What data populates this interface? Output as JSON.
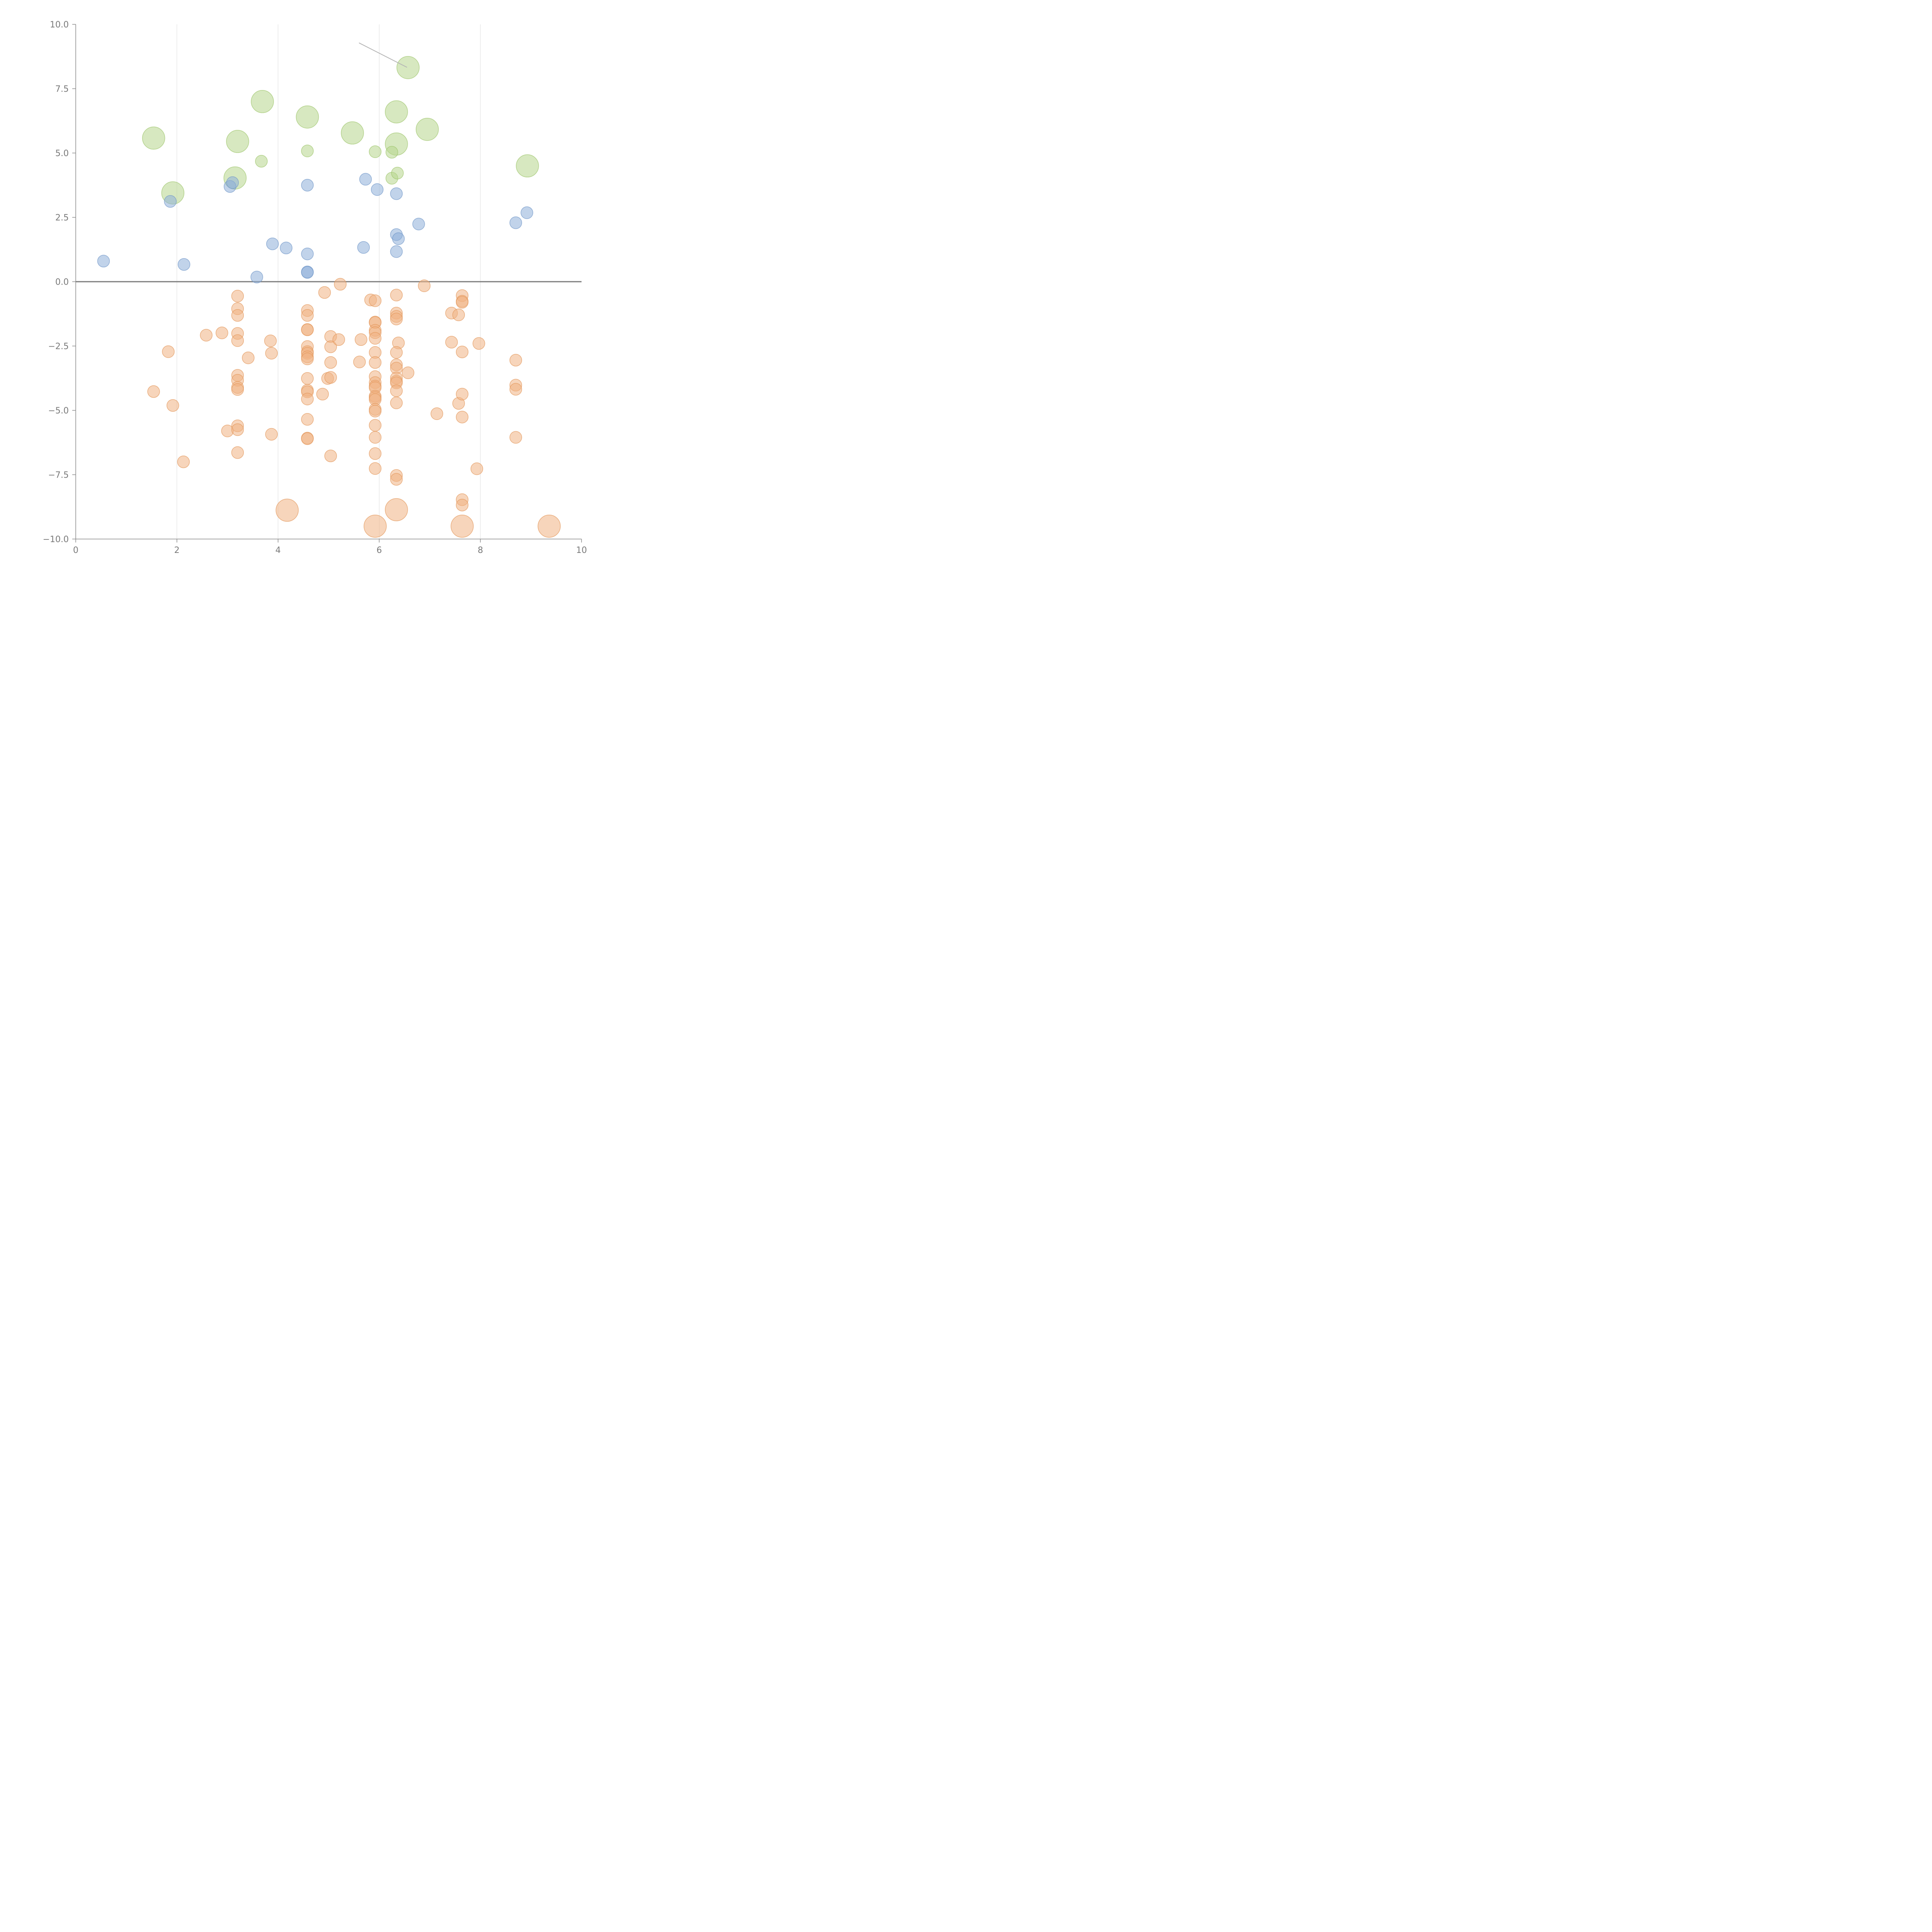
{
  "colors": {
    "background": "#ffffff",
    "axis": "#8a8a8a",
    "grid": "#dddddd",
    "zero_line": "#7a7a7a",
    "tick_text": "#7a7a7a",
    "leader": "#b5b5b5"
  },
  "chart_data": {
    "type": "scatter",
    "title": "",
    "xlabel": "",
    "ylabel": "",
    "xlim": [
      0,
      10
    ],
    "ylim": [
      -10,
      10
    ],
    "grid": "vertical",
    "x_ticks": [
      "0",
      "2",
      "4",
      "6",
      "8",
      "10"
    ],
    "y_ticks": [
      "10.0",
      "7.5",
      "5.0",
      "2.5",
      "0.0",
      "−2.5",
      "−5.0",
      "−7.5",
      "−10.0"
    ],
    "x_tick_values": [
      0,
      2,
      4,
      6,
      8,
      10
    ],
    "y_tick_values": [
      10,
      7.5,
      5,
      2.5,
      0,
      -2.5,
      -5,
      -7.5,
      -10
    ],
    "zero_line": true,
    "series": [
      {
        "name": "large-green",
        "color": "#b6d58c",
        "stroke": "#9cc46a",
        "size": "large",
        "points": [
          {
            "x": 1.54,
            "y": 5.58
          },
          {
            "x": 1.92,
            "y": 3.45
          },
          {
            "x": 3.15,
            "y": 4.03
          },
          {
            "x": 3.2,
            "y": 5.45
          },
          {
            "x": 3.69,
            "y": 7.0
          },
          {
            "x": 4.58,
            "y": 6.4
          },
          {
            "x": 5.47,
            "y": 5.78
          },
          {
            "x": 6.34,
            "y": 6.6
          },
          {
            "x": 6.34,
            "y": 5.35
          },
          {
            "x": 6.57,
            "y": 8.32
          },
          {
            "x": 6.95,
            "y": 5.92
          },
          {
            "x": 8.93,
            "y": 4.5
          }
        ]
      },
      {
        "name": "small-green",
        "color": "#b6d58c",
        "stroke": "#9cc46a",
        "size": "small",
        "points": [
          {
            "x": 3.67,
            "y": 4.68
          },
          {
            "x": 4.58,
            "y": 5.08
          },
          {
            "x": 5.92,
            "y": 5.05
          },
          {
            "x": 6.25,
            "y": 5.03
          },
          {
            "x": 6.25,
            "y": 4.02
          },
          {
            "x": 6.36,
            "y": 4.22
          }
        ]
      },
      {
        "name": "blue",
        "color": "#8eaed8",
        "stroke": "#6f95c8",
        "size": "small",
        "points": [
          {
            "x": 0.55,
            "y": 0.8
          },
          {
            "x": 1.87,
            "y": 3.12
          },
          {
            "x": 2.14,
            "y": 0.67
          },
          {
            "x": 3.05,
            "y": 3.7
          },
          {
            "x": 3.1,
            "y": 3.85
          },
          {
            "x": 3.58,
            "y": 0.18
          },
          {
            "x": 3.89,
            "y": 1.47
          },
          {
            "x": 4.16,
            "y": 1.31
          },
          {
            "x": 4.58,
            "y": 3.75
          },
          {
            "x": 4.58,
            "y": 1.08
          },
          {
            "x": 4.58,
            "y": 0.38
          },
          {
            "x": 4.58,
            "y": 0.36
          },
          {
            "x": 5.69,
            "y": 1.33
          },
          {
            "x": 5.73,
            "y": 3.98
          },
          {
            "x": 5.96,
            "y": 3.58
          },
          {
            "x": 6.34,
            "y": 3.42
          },
          {
            "x": 6.34,
            "y": 1.83
          },
          {
            "x": 6.38,
            "y": 1.67
          },
          {
            "x": 6.34,
            "y": 1.17
          },
          {
            "x": 6.78,
            "y": 2.24
          },
          {
            "x": 8.7,
            "y": 2.29
          },
          {
            "x": 8.92,
            "y": 2.68
          }
        ]
      },
      {
        "name": "small-orange",
        "color": "#f0b383",
        "stroke": "#e39558",
        "size": "small",
        "points": [
          {
            "x": 1.54,
            "y": -4.27
          },
          {
            "x": 1.83,
            "y": -2.72
          },
          {
            "x": 1.92,
            "y": -4.81
          },
          {
            "x": 2.13,
            "y": -7.0
          },
          {
            "x": 2.58,
            "y": -2.08
          },
          {
            "x": 2.89,
            "y": -1.99
          },
          {
            "x": 3.0,
            "y": -5.8
          },
          {
            "x": 3.2,
            "y": -0.56
          },
          {
            "x": 3.2,
            "y": -1.05
          },
          {
            "x": 3.2,
            "y": -1.31
          },
          {
            "x": 3.2,
            "y": -2.01
          },
          {
            "x": 3.2,
            "y": -2.29
          },
          {
            "x": 3.2,
            "y": -3.64
          },
          {
            "x": 3.2,
            "y": -3.83
          },
          {
            "x": 3.2,
            "y": -4.11
          },
          {
            "x": 3.2,
            "y": -4.19
          },
          {
            "x": 3.2,
            "y": -5.6
          },
          {
            "x": 3.2,
            "y": -5.75
          },
          {
            "x": 3.2,
            "y": -6.64
          },
          {
            "x": 3.41,
            "y": -2.96
          },
          {
            "x": 3.85,
            "y": -2.3
          },
          {
            "x": 3.87,
            "y": -2.78
          },
          {
            "x": 3.87,
            "y": -5.93
          },
          {
            "x": 4.58,
            "y": -1.12
          },
          {
            "x": 4.58,
            "y": -1.31
          },
          {
            "x": 4.58,
            "y": -1.86
          },
          {
            "x": 4.58,
            "y": -1.87
          },
          {
            "x": 4.58,
            "y": -2.52
          },
          {
            "x": 4.58,
            "y": -2.72
          },
          {
            "x": 4.58,
            "y": -2.78
          },
          {
            "x": 4.58,
            "y": -2.92
          },
          {
            "x": 4.58,
            "y": -3.0
          },
          {
            "x": 4.58,
            "y": -3.76
          },
          {
            "x": 4.58,
            "y": -4.22
          },
          {
            "x": 4.58,
            "y": -4.28
          },
          {
            "x": 4.58,
            "y": -4.56
          },
          {
            "x": 4.58,
            "y": -5.35
          },
          {
            "x": 4.58,
            "y": -6.08
          },
          {
            "x": 4.58,
            "y": -6.1
          },
          {
            "x": 4.88,
            "y": -4.37
          },
          {
            "x": 4.92,
            "y": -0.42
          },
          {
            "x": 4.98,
            "y": -3.76
          },
          {
            "x": 5.04,
            "y": -2.13
          },
          {
            "x": 5.04,
            "y": -2.53
          },
          {
            "x": 5.04,
            "y": -3.14
          },
          {
            "x": 5.04,
            "y": -3.72
          },
          {
            "x": 5.04,
            "y": -6.77
          },
          {
            "x": 5.2,
            "y": -2.25
          },
          {
            "x": 5.23,
            "y": -0.1
          },
          {
            "x": 5.61,
            "y": -3.12
          },
          {
            "x": 5.64,
            "y": -2.25
          },
          {
            "x": 5.83,
            "y": -0.71
          },
          {
            "x": 5.92,
            "y": -0.74
          },
          {
            "x": 5.92,
            "y": -1.57
          },
          {
            "x": 5.92,
            "y": -1.59
          },
          {
            "x": 5.92,
            "y": -1.89
          },
          {
            "x": 5.92,
            "y": -1.98
          },
          {
            "x": 5.92,
            "y": -2.2
          },
          {
            "x": 5.92,
            "y": -2.75
          },
          {
            "x": 5.92,
            "y": -3.14
          },
          {
            "x": 5.92,
            "y": -3.69
          },
          {
            "x": 5.92,
            "y": -3.92
          },
          {
            "x": 5.92,
            "y": -4.06
          },
          {
            "x": 5.92,
            "y": -4.12
          },
          {
            "x": 5.92,
            "y": -4.45
          },
          {
            "x": 5.92,
            "y": -4.51
          },
          {
            "x": 5.92,
            "y": -4.58
          },
          {
            "x": 5.92,
            "y": -4.96
          },
          {
            "x": 5.92,
            "y": -5.03
          },
          {
            "x": 5.92,
            "y": -5.58
          },
          {
            "x": 5.92,
            "y": -6.05
          },
          {
            "x": 5.92,
            "y": -6.68
          },
          {
            "x": 5.92,
            "y": -7.26
          },
          {
            "x": 6.34,
            "y": -0.52
          },
          {
            "x": 6.34,
            "y": -1.22
          },
          {
            "x": 6.34,
            "y": -1.35
          },
          {
            "x": 6.34,
            "y": -1.45
          },
          {
            "x": 6.38,
            "y": -2.38
          },
          {
            "x": 6.34,
            "y": -2.75
          },
          {
            "x": 6.34,
            "y": -3.23
          },
          {
            "x": 6.34,
            "y": -3.36
          },
          {
            "x": 6.34,
            "y": -3.74
          },
          {
            "x": 6.34,
            "y": -3.87
          },
          {
            "x": 6.34,
            "y": -3.93
          },
          {
            "x": 6.34,
            "y": -4.24
          },
          {
            "x": 6.34,
            "y": -4.71
          },
          {
            "x": 6.34,
            "y": -7.53
          },
          {
            "x": 6.34,
            "y": -7.68
          },
          {
            "x": 6.57,
            "y": -3.54
          },
          {
            "x": 6.89,
            "y": -0.16
          },
          {
            "x": 7.14,
            "y": -5.13
          },
          {
            "x": 7.43,
            "y": -1.22
          },
          {
            "x": 7.43,
            "y": -2.35
          },
          {
            "x": 7.57,
            "y": -1.29
          },
          {
            "x": 7.57,
            "y": -4.73
          },
          {
            "x": 7.64,
            "y": -0.54
          },
          {
            "x": 7.64,
            "y": -0.76
          },
          {
            "x": 7.64,
            "y": -0.8
          },
          {
            "x": 7.64,
            "y": -2.73
          },
          {
            "x": 7.64,
            "y": -4.37
          },
          {
            "x": 7.64,
            "y": -5.26
          },
          {
            "x": 7.64,
            "y": -8.47
          },
          {
            "x": 7.64,
            "y": -8.68
          },
          {
            "x": 7.93,
            "y": -7.27
          },
          {
            "x": 7.97,
            "y": -2.4
          },
          {
            "x": 8.7,
            "y": -3.05
          },
          {
            "x": 8.7,
            "y": -4.02
          },
          {
            "x": 8.7,
            "y": -4.18
          },
          {
            "x": 8.7,
            "y": -6.05
          }
        ]
      },
      {
        "name": "large-orange",
        "color": "#f0b383",
        "stroke": "#e39558",
        "size": "large",
        "points": [
          {
            "x": 4.18,
            "y": -8.88
          },
          {
            "x": 6.34,
            "y": -8.86
          },
          {
            "x": 5.92,
            "y": -9.5
          },
          {
            "x": 7.64,
            "y": -9.5
          },
          {
            "x": 9.36,
            "y": -9.5
          }
        ]
      }
    ],
    "annotations": [
      {
        "type": "leader-line",
        "from": {
          "x": 5.6,
          "y": 9.28
        },
        "to": {
          "x": 6.55,
          "y": 8.33
        }
      }
    ]
  }
}
